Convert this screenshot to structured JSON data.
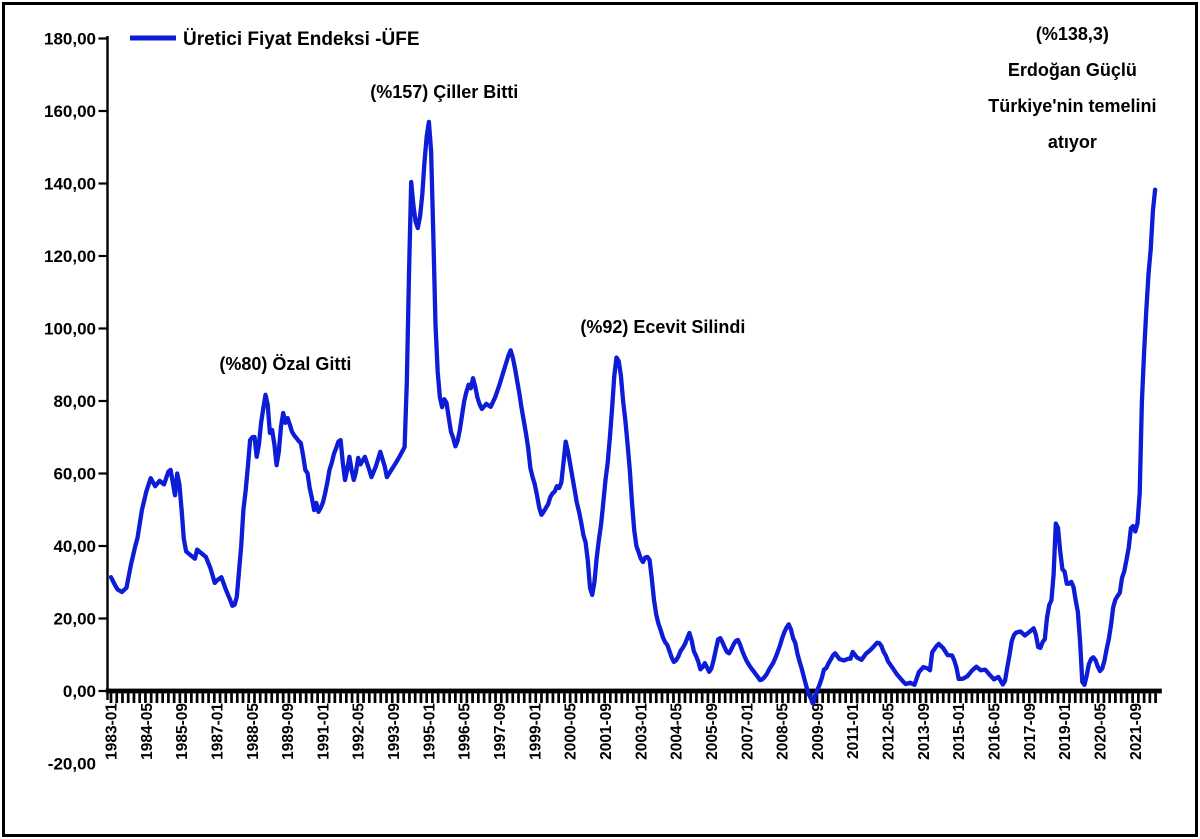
{
  "legend": {
    "label": "Üretici Fiyat Endeksi -ÜFE"
  },
  "colors": {
    "line": "#0D1CD6",
    "axis": "#000000",
    "text": "#000000",
    "background": "#ffffff",
    "frame": "#000000"
  },
  "chart_data": {
    "type": "line",
    "title": "",
    "series_name": "Üretici Fiyat Endeksi -ÜFE",
    "x_start": "1983-01",
    "x_end": "2022-06",
    "x_unit": "months since 1983-01",
    "x_tick_interval_months": 16,
    "x_tick_labels": [
      "1983-01",
      "1984-05",
      "1985-09",
      "1987-01",
      "1988-05",
      "1989-09",
      "1991-01",
      "1992-05",
      "1993-09",
      "1995-01",
      "1996-05",
      "1997-09",
      "1999-01",
      "2000-05",
      "2001-09",
      "2003-01",
      "2004-05",
      "2005-09",
      "2007-01",
      "2008-05",
      "2009-09",
      "2011-01",
      "2012-05",
      "2013-09",
      "2015-01",
      "2016-05",
      "2017-09",
      "2019-01",
      "2020-05",
      "2021-09"
    ],
    "y_ticks": [
      180,
      160,
      140,
      120,
      100,
      80,
      60,
      40,
      20,
      0,
      -20
    ],
    "ylim": [
      -20,
      180
    ],
    "decimal_separator": ",",
    "grid": false,
    "legend_position": "top-left",
    "annotations": [
      {
        "text": "(%80) Özal Gitti",
        "t": 79,
        "v_baseline": 88.6,
        "lines": [
          "(%80) Özal Gitti"
        ]
      },
      {
        "text": "(%157) Çiller Bitti",
        "t": 151,
        "v_baseline": 163.6,
        "lines": [
          "(%157) Çiller Bitti"
        ]
      },
      {
        "text": "(%92) Ecevit Silindi",
        "t": 250,
        "v_baseline": 98.8,
        "lines": [
          "(%92) Ecevit Silindi"
        ]
      },
      {
        "text": "(%138,3) Erdoğan Güçlü Türkiye'nin temelini atıyor",
        "t": 435.5,
        "v_baseline": 179.6,
        "lines": [
          "(%138,3)",
          "Erdoğan Güçlü",
          "Türkiye'nin temelini",
          "atıyor"
        ]
      }
    ],
    "points": [
      [
        0,
        31.4
      ],
      [
        2,
        29
      ],
      [
        3,
        28
      ],
      [
        5,
        27.3
      ],
      [
        7,
        28.5
      ],
      [
        9,
        34.8
      ],
      [
        11,
        40
      ],
      [
        12,
        42.2
      ],
      [
        14,
        49.9
      ],
      [
        16,
        55
      ],
      [
        18,
        58.7
      ],
      [
        20,
        56.5
      ],
      [
        22,
        58
      ],
      [
        24,
        57
      ],
      [
        26,
        60.5
      ],
      [
        27,
        61
      ],
      [
        29,
        54
      ],
      [
        30,
        60
      ],
      [
        31,
        57
      ],
      [
        32,
        50
      ],
      [
        33,
        42
      ],
      [
        34,
        38.5
      ],
      [
        36,
        37.5
      ],
      [
        38,
        36.5
      ],
      [
        39,
        39
      ],
      [
        41,
        38
      ],
      [
        43,
        37
      ],
      [
        45,
        34
      ],
      [
        47,
        29.8
      ],
      [
        48,
        30.5
      ],
      [
        50,
        31.4
      ],
      [
        52,
        28
      ],
      [
        54,
        25.1
      ],
      [
        55,
        23.5
      ],
      [
        56,
        23.8
      ],
      [
        57,
        26
      ],
      [
        58,
        33
      ],
      [
        59,
        40
      ],
      [
        60,
        50
      ],
      [
        61,
        55.4
      ],
      [
        62,
        62
      ],
      [
        63,
        69.2
      ],
      [
        64,
        70
      ],
      [
        65,
        70.1
      ],
      [
        66,
        64.6
      ],
      [
        67,
        68
      ],
      [
        68,
        74
      ],
      [
        69,
        78
      ],
      [
        70,
        81.7
      ],
      [
        71,
        79
      ],
      [
        72,
        71.2
      ],
      [
        73,
        72
      ],
      [
        74,
        68
      ],
      [
        75,
        62.3
      ],
      [
        76,
        66
      ],
      [
        77,
        73
      ],
      [
        78,
        76.7
      ],
      [
        79,
        74
      ],
      [
        80,
        75.3
      ],
      [
        81,
        73.5
      ],
      [
        82,
        71.5
      ],
      [
        83,
        70.5
      ],
      [
        84,
        69.8
      ],
      [
        85,
        69
      ],
      [
        86,
        68.4
      ],
      [
        87,
        65
      ],
      [
        88,
        61
      ],
      [
        89,
        60.1
      ],
      [
        90,
        56
      ],
      [
        91,
        53.2
      ],
      [
        92,
        49.9
      ],
      [
        93,
        51.9
      ],
      [
        94,
        49.4
      ],
      [
        95,
        50.5
      ],
      [
        96,
        52
      ],
      [
        97,
        54.5
      ],
      [
        98,
        57.5
      ],
      [
        99,
        61
      ],
      [
        100,
        63
      ],
      [
        101,
        65.5
      ],
      [
        102,
        67
      ],
      [
        103,
        68.8
      ],
      [
        104,
        69.2
      ],
      [
        105,
        63
      ],
      [
        106,
        58.2
      ],
      [
        107,
        61
      ],
      [
        108,
        64.6
      ],
      [
        109,
        61
      ],
      [
        110,
        58.2
      ],
      [
        111,
        60.5
      ],
      [
        112,
        64.3
      ],
      [
        113,
        62.5
      ],
      [
        115,
        64.6
      ],
      [
        117,
        61
      ],
      [
        118,
        59
      ],
      [
        120,
        62
      ],
      [
        122,
        66
      ],
      [
        124,
        62
      ],
      [
        125,
        59
      ],
      [
        127,
        61
      ],
      [
        129,
        62.9
      ],
      [
        131,
        65
      ],
      [
        133,
        67.3
      ],
      [
        134,
        85
      ],
      [
        135,
        115
      ],
      [
        136,
        140.4
      ],
      [
        137,
        134
      ],
      [
        138,
        129.5
      ],
      [
        139,
        127.7
      ],
      [
        140,
        131
      ],
      [
        141,
        137
      ],
      [
        142,
        146
      ],
      [
        143,
        153
      ],
      [
        144,
        157
      ],
      [
        145,
        149
      ],
      [
        146,
        126
      ],
      [
        147,
        101
      ],
      [
        148,
        88
      ],
      [
        149,
        81
      ],
      [
        150,
        78.3
      ],
      [
        151,
        80.5
      ],
      [
        152,
        79.5
      ],
      [
        153,
        75.5
      ],
      [
        154,
        71.5
      ],
      [
        155,
        69.8
      ],
      [
        156,
        67.5
      ],
      [
        157,
        69
      ],
      [
        158,
        72
      ],
      [
        159,
        76
      ],
      [
        160,
        80
      ],
      [
        161,
        82.5
      ],
      [
        162,
        84.5
      ],
      [
        163,
        83.5
      ],
      [
        164,
        86.3
      ],
      [
        165,
        84
      ],
      [
        166,
        81
      ],
      [
        167,
        79
      ],
      [
        168,
        77.8
      ],
      [
        170,
        79.2
      ],
      [
        172,
        78.4
      ],
      [
        174,
        81
      ],
      [
        176,
        84.5
      ],
      [
        178,
        88.5
      ],
      [
        180,
        92.5
      ],
      [
        181,
        94
      ],
      [
        182,
        92
      ],
      [
        183,
        89
      ],
      [
        184,
        85.5
      ],
      [
        185,
        82
      ],
      [
        186,
        78
      ],
      [
        187,
        74.5
      ],
      [
        188,
        71
      ],
      [
        189,
        67
      ],
      [
        190,
        61.5
      ],
      [
        191,
        59
      ],
      [
        192,
        57
      ],
      [
        193,
        54
      ],
      [
        194,
        50.5
      ],
      [
        195,
        48.6
      ],
      [
        196,
        49.5
      ],
      [
        197,
        50.5
      ],
      [
        198,
        51.5
      ],
      [
        199,
        53.5
      ],
      [
        200,
        54.5
      ],
      [
        201,
        55
      ],
      [
        202,
        56.5
      ],
      [
        203,
        56
      ],
      [
        204,
        57.5
      ],
      [
        205,
        63
      ],
      [
        206,
        68.8
      ],
      [
        207,
        66
      ],
      [
        208,
        62.5
      ],
      [
        209,
        59
      ],
      [
        210,
        55.5
      ],
      [
        211,
        52
      ],
      [
        212,
        49.5
      ],
      [
        213,
        46.5
      ],
      [
        214,
        43
      ],
      [
        215,
        41
      ],
      [
        216,
        36
      ],
      [
        217,
        28.5
      ],
      [
        218,
        26.5
      ],
      [
        219,
        30
      ],
      [
        220,
        36.5
      ],
      [
        221,
        41.7
      ],
      [
        222,
        46
      ],
      [
        223,
        52
      ],
      [
        224,
        58.2
      ],
      [
        225,
        63
      ],
      [
        226,
        70
      ],
      [
        227,
        78
      ],
      [
        228,
        87
      ],
      [
        229,
        92
      ],
      [
        230,
        91
      ],
      [
        231,
        87
      ],
      [
        232,
        80
      ],
      [
        233,
        74.8
      ],
      [
        234,
        68
      ],
      [
        235,
        61
      ],
      [
        236,
        52
      ],
      [
        237,
        44.4
      ],
      [
        238,
        40
      ],
      [
        239,
        38.3
      ],
      [
        240,
        36.5
      ],
      [
        241,
        35.6
      ],
      [
        242,
        36.8
      ],
      [
        243,
        37
      ],
      [
        244,
        36.1
      ],
      [
        245,
        31
      ],
      [
        246,
        25.1
      ],
      [
        247,
        21
      ],
      [
        248,
        18.5
      ],
      [
        249,
        16.8
      ],
      [
        250,
        14.8
      ],
      [
        251,
        13.5
      ],
      [
        252,
        12.7
      ],
      [
        253,
        11
      ],
      [
        254,
        9.2
      ],
      [
        255,
        8
      ],
      [
        256,
        8.5
      ],
      [
        257,
        9.5
      ],
      [
        258,
        11
      ],
      [
        259,
        11.9
      ],
      [
        260,
        13
      ],
      [
        261,
        14.5
      ],
      [
        262,
        16
      ],
      [
        263,
        14
      ],
      [
        264,
        11
      ],
      [
        265,
        9.7
      ],
      [
        266,
        8.2
      ],
      [
        267,
        6
      ],
      [
        268,
        6.6
      ],
      [
        269,
        7.7
      ],
      [
        270,
        6.5
      ],
      [
        271,
        5.3
      ],
      [
        272,
        6.2
      ],
      [
        273,
        8.5
      ],
      [
        274,
        11.5
      ],
      [
        275,
        14.2
      ],
      [
        276,
        14.6
      ],
      [
        277,
        13.4
      ],
      [
        278,
        12
      ],
      [
        279,
        10.8
      ],
      [
        280,
        10.4
      ],
      [
        281,
        11.5
      ],
      [
        282,
        12.8
      ],
      [
        283,
        13.8
      ],
      [
        284,
        14.1
      ],
      [
        285,
        12.8
      ],
      [
        286,
        11
      ],
      [
        287,
        9.5
      ],
      [
        288,
        8.2
      ],
      [
        289,
        7.2
      ],
      [
        290,
        6.3
      ],
      [
        291,
        5.5
      ],
      [
        292,
        4.7
      ],
      [
        293,
        3.9
      ],
      [
        294,
        3
      ],
      [
        295,
        3.2
      ],
      [
        296,
        3.8
      ],
      [
        297,
        4.6
      ],
      [
        298,
        5.8
      ],
      [
        299,
        6.8
      ],
      [
        300,
        7.8
      ],
      [
        301,
        9.2
      ],
      [
        302,
        10.8
      ],
      [
        303,
        12.5
      ],
      [
        304,
        14.5
      ],
      [
        305,
        16.2
      ],
      [
        306,
        17.5
      ],
      [
        307,
        18.4
      ],
      [
        308,
        17
      ],
      [
        309,
        14.6
      ],
      [
        310,
        13.2
      ],
      [
        311,
        10.2
      ],
      [
        312,
        8
      ],
      [
        313,
        6
      ],
      [
        314,
        3.5
      ],
      [
        315,
        1.2
      ],
      [
        316,
        -0.8
      ],
      [
        317,
        -2
      ],
      [
        318,
        -3.5
      ],
      [
        319,
        -1.2
      ],
      [
        320,
        0.3
      ],
      [
        321,
        1.8
      ],
      [
        322,
        3.6
      ],
      [
        323,
        5.9
      ],
      [
        324,
        6.3
      ],
      [
        325,
        7.6
      ],
      [
        326,
        8.6
      ],
      [
        327,
        9.8
      ],
      [
        328,
        10.4
      ],
      [
        329,
        9.6
      ],
      [
        330,
        8.8
      ],
      [
        332,
        8.4
      ],
      [
        334,
        8.9
      ],
      [
        335,
        8.9
      ],
      [
        336,
        10.8
      ],
      [
        337,
        10
      ],
      [
        338,
        9.2
      ],
      [
        340,
        8.6
      ],
      [
        342,
        10.3
      ],
      [
        344,
        11.3
      ],
      [
        346,
        12.6
      ],
      [
        347,
        13.3
      ],
      [
        348,
        13.2
      ],
      [
        349,
        12.4
      ],
      [
        350,
        10.8
      ],
      [
        351,
        9.8
      ],
      [
        352,
        8.2
      ],
      [
        354,
        6.4
      ],
      [
        356,
        4.6
      ],
      [
        358,
        3.2
      ],
      [
        359,
        2.5
      ],
      [
        360,
        1.9
      ],
      [
        362,
        2.3
      ],
      [
        364,
        1.7
      ],
      [
        366,
        5.2
      ],
      [
        368,
        6.6
      ],
      [
        370,
        6.2
      ],
      [
        371,
        5.7
      ],
      [
        372,
        10.7
      ],
      [
        374,
        12.4
      ],
      [
        375,
        13
      ],
      [
        377,
        11.8
      ],
      [
        379,
        9.9
      ],
      [
        381,
        9.8
      ],
      [
        382,
        8.4
      ],
      [
        383,
        6.4
      ],
      [
        384,
        3.3
      ],
      [
        386,
        3.4
      ],
      [
        388,
        4.1
      ],
      [
        390,
        5.6
      ],
      [
        392,
        6.7
      ],
      [
        394,
        5.7
      ],
      [
        396,
        5.9
      ],
      [
        398,
        4.5
      ],
      [
        400,
        3.2
      ],
      [
        402,
        3.9
      ],
      [
        404,
        1.8
      ],
      [
        405,
        2.8
      ],
      [
        406,
        6.4
      ],
      [
        407,
        9.9
      ],
      [
        408,
        13.7
      ],
      [
        409,
        15.4
      ],
      [
        410,
        16.1
      ],
      [
        412,
        16.4
      ],
      [
        414,
        15.3
      ],
      [
        416,
        16.3
      ],
      [
        418,
        17.3
      ],
      [
        419,
        15.5
      ],
      [
        420,
        12.1
      ],
      [
        421,
        11.9
      ],
      [
        422,
        13.5
      ],
      [
        423,
        14.3
      ],
      [
        424,
        20.2
      ],
      [
        425,
        23.7
      ],
      [
        426,
        25
      ],
      [
        427,
        32.1
      ],
      [
        428,
        46.2
      ],
      [
        429,
        45
      ],
      [
        430,
        38.5
      ],
      [
        431,
        33.6
      ],
      [
        432,
        32.9
      ],
      [
        433,
        29.6
      ],
      [
        434,
        29.6
      ],
      [
        435,
        30.1
      ],
      [
        436,
        28.7
      ],
      [
        437,
        25
      ],
      [
        438,
        21.7
      ],
      [
        439,
        13.5
      ],
      [
        440,
        2.5
      ],
      [
        441,
        1.7
      ],
      [
        442,
        4.3
      ],
      [
        443,
        7.4
      ],
      [
        444,
        8.8
      ],
      [
        445,
        9.3
      ],
      [
        446,
        8.5
      ],
      [
        447,
        6.7
      ],
      [
        448,
        5.5
      ],
      [
        449,
        6.2
      ],
      [
        450,
        8.3
      ],
      [
        451,
        11.5
      ],
      [
        452,
        14.3
      ],
      [
        453,
        18.2
      ],
      [
        454,
        23.1
      ],
      [
        455,
        25.2
      ],
      [
        456,
        26.2
      ],
      [
        457,
        27.1
      ],
      [
        458,
        31.2
      ],
      [
        459,
        33
      ],
      [
        460,
        36.2
      ],
      [
        461,
        39.5
      ],
      [
        462,
        44.9
      ],
      [
        463,
        45.5
      ],
      [
        464,
        44
      ],
      [
        465,
        46.3
      ],
      [
        466,
        54.6
      ],
      [
        467,
        79.9
      ],
      [
        468,
        93.5
      ],
      [
        469,
        105
      ],
      [
        470,
        115
      ],
      [
        471,
        121.8
      ],
      [
        472,
        132.4
      ],
      [
        473,
        138.3
      ]
    ]
  }
}
